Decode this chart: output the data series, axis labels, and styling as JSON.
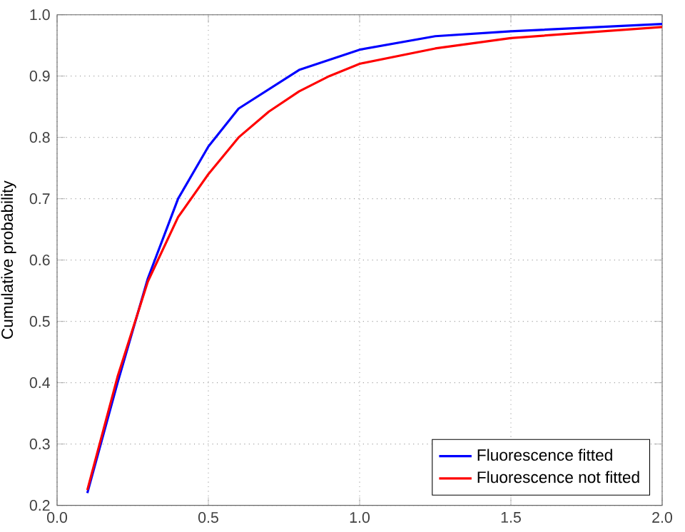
{
  "chart_data": {
    "type": "line",
    "ylabel": "Cumulative probability",
    "series": [
      {
        "name": "Fluorescence fitted",
        "color": "#0000ff",
        "x": [
          0.1,
          0.2,
          0.3,
          0.4,
          0.5,
          0.6,
          0.8,
          1.0,
          1.25,
          1.5,
          2.0
        ],
        "values": [
          0.22,
          0.4,
          0.57,
          0.7,
          0.785,
          0.847,
          0.91,
          0.943,
          0.965,
          0.973,
          0.985
        ]
      },
      {
        "name": "Fluorescence not fitted",
        "color": "#ff0000",
        "x": [
          0.1,
          0.2,
          0.3,
          0.4,
          0.5,
          0.6,
          0.7,
          0.8,
          0.9,
          1.0,
          1.25,
          1.5,
          2.0
        ],
        "values": [
          0.225,
          0.41,
          0.565,
          0.67,
          0.74,
          0.8,
          0.842,
          0.875,
          0.9,
          0.92,
          0.945,
          0.962,
          0.98
        ]
      }
    ],
    "xlim": [
      0,
      2
    ],
    "ylim": [
      0.2,
      1.0
    ],
    "xticks": [
      {
        "value": 0,
        "label": "0.0"
      },
      0.5,
      {
        "value": 1,
        "label": "1.0"
      },
      1.5,
      {
        "value": 2,
        "label": "2.0"
      }
    ],
    "yticks": [
      0.2,
      0.3,
      0.4,
      0.5,
      0.6,
      0.7,
      0.8,
      0.9,
      {
        "value": 1,
        "label": "1.0"
      }
    ],
    "grid": true,
    "legend": "bottom right",
    "line_style": "solid",
    "marker": "none"
  }
}
